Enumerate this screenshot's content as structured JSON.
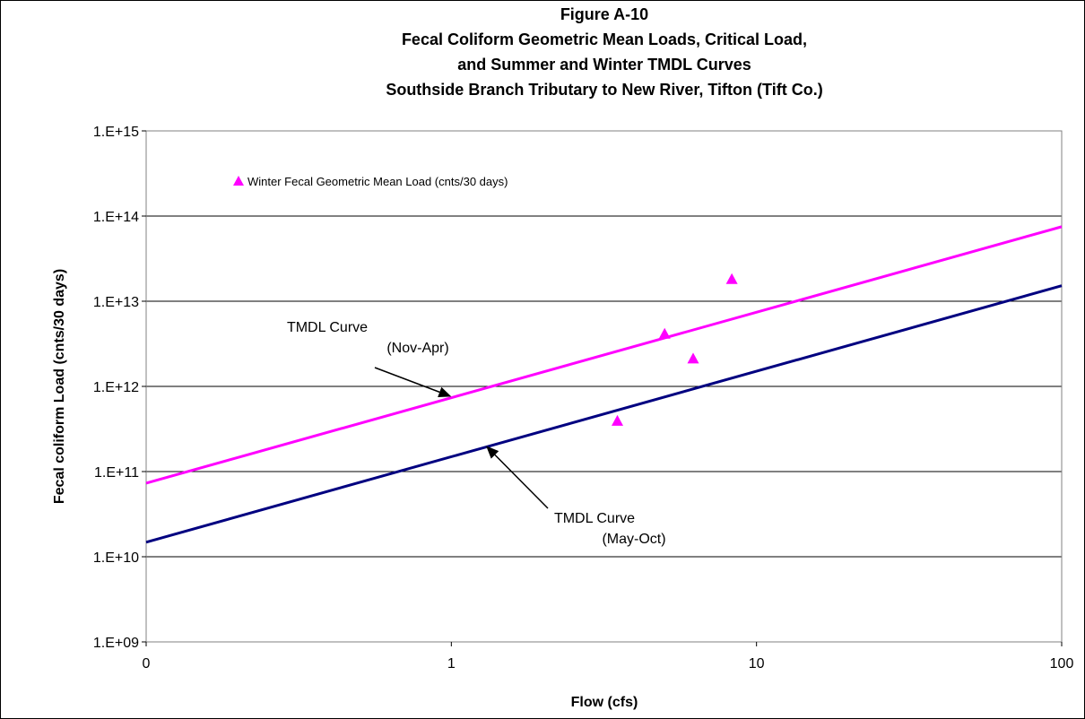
{
  "chart_data": {
    "type": "scatter",
    "title_lines": [
      "Figure A-10",
      "Fecal Coliform Geometric Mean Loads,  Critical Load,",
      "and Summer and Winter TMDL Curves",
      "Southside Branch Tributary to New River, Tifton (Tift Co.)"
    ],
    "xlabel": "Flow   (cfs)",
    "ylabel": "Fecal coliform Load  (cnts/30 days)",
    "x_scale": "log",
    "y_scale": "log",
    "xlim": [
      0.1,
      100
    ],
    "ylim": [
      1000000000.0,
      1000000000000000.0
    ],
    "x_tick_values": [
      0.1,
      1,
      10,
      100
    ],
    "x_tick_labels": [
      "0",
      "1",
      "10",
      "100"
    ],
    "y_tick_values": [
      1000000000.0,
      10000000000.0,
      100000000000.0,
      1000000000000.0,
      10000000000000.0,
      100000000000000.0,
      1000000000000000.0
    ],
    "y_tick_labels": [
      "1.E+09",
      "1.E+10",
      "1.E+11",
      "1.E+12",
      "1.E+13",
      "1.E+14",
      "1.E+15"
    ],
    "grid": "horizontal",
    "legend_position": "top-left",
    "series": [
      {
        "kind": "line",
        "color": "#ff00ff",
        "x": [
          0.1,
          100
        ],
        "y": [
          73000000000.0,
          75000000000000.0
        ]
      },
      {
        "kind": "line",
        "color": "#000080",
        "x": [
          0.1,
          100
        ],
        "y": [
          14800000000.0,
          15200000000000.0
        ]
      },
      {
        "kind": "scatter",
        "name": "Winter Fecal Geometric Mean Load (cnts/30 days)",
        "color": "#ff00ff",
        "marker": "triangle",
        "x": [
          3.5,
          5.0,
          6.2,
          8.3
        ],
        "y": [
          390000000000.0,
          4100000000000.0,
          2100000000000.0,
          18000000000000.0
        ]
      }
    ],
    "annotations": [
      {
        "lines": [
          "TMDL Curve",
          "(Nov-Apr)"
        ],
        "target_x": 1.0,
        "target_y": 760000000000.0
      },
      {
        "lines": [
          "TMDL Curve",
          "(May-Oct)"
        ],
        "target_x": 1.3,
        "target_y": 200000000000.0
      }
    ]
  }
}
